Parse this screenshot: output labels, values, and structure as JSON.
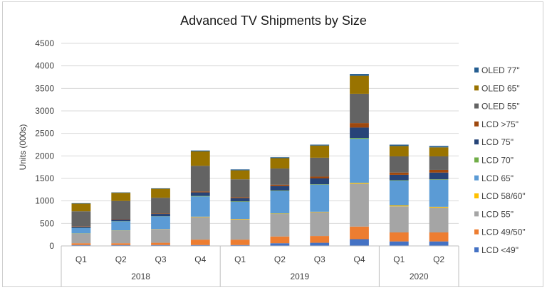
{
  "chart_data": {
    "type": "bar",
    "stacked": true,
    "title": "Advanced TV Shipments by Size",
    "ylabel": "Units (000s)",
    "xlabel": "",
    "ylim": [
      0,
      4500
    ],
    "yticks": [
      0,
      500,
      1000,
      1500,
      2000,
      2500,
      3000,
      3500,
      4000,
      4500
    ],
    "grid": true,
    "legend_position": "right",
    "categories": [
      "Q1",
      "Q2",
      "Q3",
      "Q4",
      "Q1",
      "Q2",
      "Q3",
      "Q4",
      "Q1",
      "Q2"
    ],
    "year_groups": [
      {
        "label": "2018",
        "count": 4
      },
      {
        "label": "2019",
        "count": 4
      },
      {
        "label": "2020",
        "count": 2
      }
    ],
    "series": [
      {
        "name": "LCD <49\"",
        "color": "#4472c4",
        "values": [
          20,
          20,
          20,
          20,
          20,
          60,
          70,
          150,
          100,
          100
        ]
      },
      {
        "name": "LCD 49/50\"",
        "color": "#ed7d31",
        "values": [
          40,
          40,
          50,
          120,
          120,
          150,
          150,
          280,
          200,
          200
        ]
      },
      {
        "name": "LCD 55\"",
        "color": "#a5a5a5",
        "values": [
          210,
          280,
          300,
          500,
          450,
          500,
          530,
          950,
          580,
          550
        ]
      },
      {
        "name": "LCD 58/60\"",
        "color": "#ffc000",
        "values": [
          5,
          5,
          5,
          10,
          10,
          10,
          10,
          20,
          20,
          20
        ]
      },
      {
        "name": "LCD 65\"",
        "color": "#5b9bd5",
        "values": [
          120,
          200,
          280,
          450,
          380,
          500,
          600,
          980,
          550,
          600
        ]
      },
      {
        "name": "LCD 70\"",
        "color": "#70ad47",
        "values": [
          5,
          5,
          5,
          10,
          10,
          10,
          10,
          20,
          10,
          10
        ]
      },
      {
        "name": "LCD 75\"",
        "color": "#264478",
        "values": [
          30,
          40,
          50,
          80,
          70,
          100,
          130,
          230,
          120,
          150
        ]
      },
      {
        "name": "LCD >75\"",
        "color": "#9e480e",
        "values": [
          10,
          10,
          10,
          20,
          20,
          30,
          40,
          100,
          50,
          60
        ]
      },
      {
        "name": "OLED 55\"",
        "color": "#636363",
        "values": [
          330,
          400,
          350,
          570,
          400,
          360,
          420,
          650,
          360,
          300
        ]
      },
      {
        "name": "OLED 65\"",
        "color": "#997300",
        "values": [
          170,
          180,
          200,
          320,
          200,
          230,
          270,
          400,
          230,
          200
        ]
      },
      {
        "name": "OLED 77\"",
        "color": "#255e91",
        "values": [
          10,
          10,
          10,
          20,
          20,
          20,
          20,
          40,
          30,
          30
        ]
      }
    ]
  }
}
